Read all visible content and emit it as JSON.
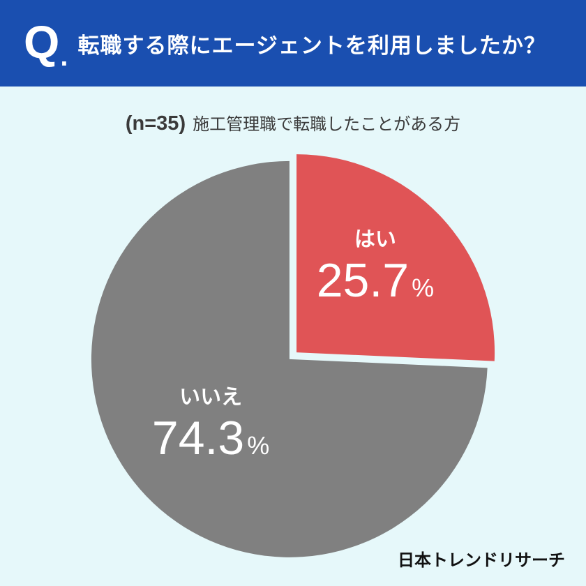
{
  "header": {
    "q_mark": "Q",
    "q_dot": ".",
    "question": "転職する際にエージェントを利用しましたか？"
  },
  "subtitle": {
    "n_label": "(n=35)",
    "text": "施工管理職で転職したことがある方"
  },
  "chart_data": {
    "type": "pie",
    "title": "転職する際にエージェントを利用しましたか？",
    "categories": [
      "はい",
      "いいえ"
    ],
    "values": [
      25.7,
      74.3
    ],
    "value_labels": [
      "25.7",
      "74.3"
    ],
    "unit": "%",
    "colors": [
      "#e05456",
      "#808080"
    ],
    "start": "top",
    "direction": "clockwise"
  },
  "branding": {
    "logo": "日本トレンドリサーチ"
  }
}
